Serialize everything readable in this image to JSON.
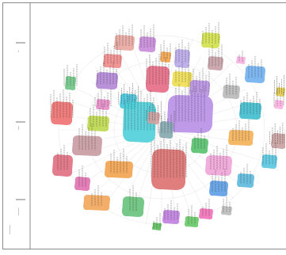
{
  "chart_data": {
    "type": "scatter",
    "title": "",
    "xlabel": "",
    "ylabel": "",
    "y_axis_label_texts": [
      "—",
      "——",
      "————",
      "—————"
    ],
    "text_legibility": "illegible",
    "grid": false,
    "legend": "none",
    "edge_color": "#dcdcdc",
    "clusters": [
      {
        "color": "#e8a6a0",
        "labels": 6
      },
      {
        "color": "#c88ad8",
        "labels": 5
      },
      {
        "color": "#d2e04a",
        "labels": 6
      },
      {
        "color": "#f08a8a",
        "labels": 6
      },
      {
        "color": "#f6b0e0",
        "labels": 2
      },
      {
        "color": "#f1a34a",
        "labels": 4
      },
      {
        "color": "#b9a8e8",
        "labels": 5
      },
      {
        "color": "#c5a0a6",
        "labels": 5
      },
      {
        "color": "#6fb0ee",
        "labels": 5
      },
      {
        "color": "#e66a84",
        "labels": 8
      },
      {
        "color": "#b186d6",
        "labels": 7
      },
      {
        "color": "#6ec486",
        "labels": 5
      },
      {
        "color": "#f0de52",
        "labels": 5
      },
      {
        "color": "#b8b8b8",
        "labels": 4
      },
      {
        "color": "#46c8de",
        "labels": 8
      },
      {
        "color": "#b890e2",
        "labels": 7
      },
      {
        "color": "#e68cc8",
        "labels": 6
      },
      {
        "color": "#e0c84a",
        "labels": 6
      },
      {
        "color": "#3fbccd",
        "labels": 7
      },
      {
        "color": "#ffb0e0",
        "labels": 4
      },
      {
        "color": "#4fcfd8",
        "labels": 10
      },
      {
        "color": "#b88fe6",
        "labels": 10
      },
      {
        "color": "#84a8b0",
        "labels": 6
      },
      {
        "color": "#ee7070",
        "labels": 8
      },
      {
        "color": "#d3a0a0",
        "labels": 6
      },
      {
        "color": "#bcd84c",
        "labels": 6
      },
      {
        "color": "#f3b055",
        "labels": 6
      },
      {
        "color": "#dd7070",
        "labels": 12
      },
      {
        "color": "#c9a0a0",
        "labels": 8
      },
      {
        "color": "#c69aa0",
        "labels": 6
      },
      {
        "color": "#55c06c",
        "labels": 4
      },
      {
        "color": "#f2a24e",
        "labels": 6
      },
      {
        "color": "#f0a4d8",
        "labels": 6
      },
      {
        "color": "#56c6e0",
        "labels": 5
      },
      {
        "color": "#e06e80",
        "labels": 4
      },
      {
        "color": "#e070b0",
        "labels": 3
      },
      {
        "color": "#f2a65a",
        "labels": 4
      },
      {
        "color": "#66c27a",
        "labels": 3
      },
      {
        "color": "#5bb8dc",
        "labels": 4
      },
      {
        "color": "#5c9ee6",
        "labels": 5
      },
      {
        "color": "#c080e0",
        "labels": 5
      },
      {
        "color": "#66c866",
        "labels": 3
      },
      {
        "color": "#f070b8",
        "labels": 3
      },
      {
        "color": "#bcbcbc",
        "labels": 3
      },
      {
        "color": "#5dbd5d",
        "labels": 3
      }
    ]
  }
}
